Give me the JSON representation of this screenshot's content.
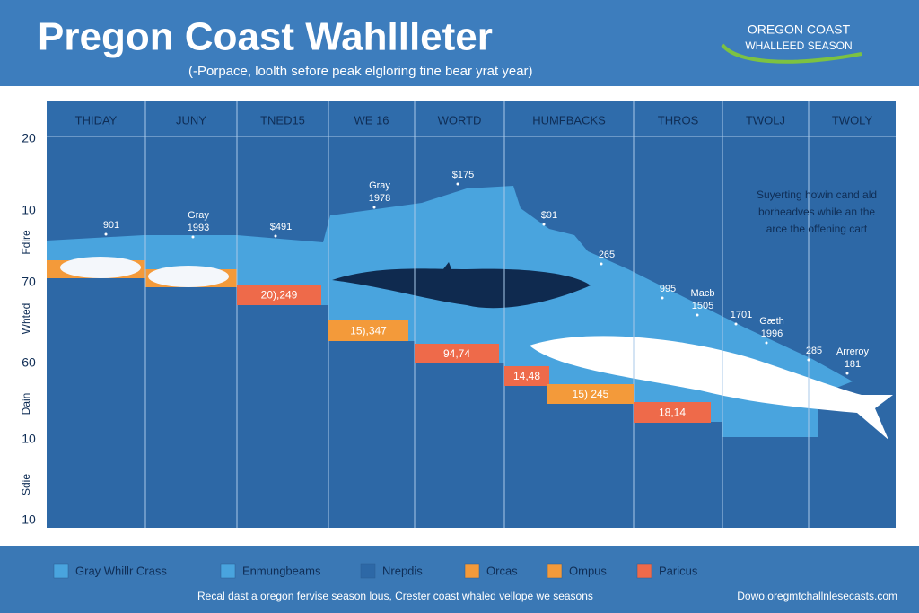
{
  "header": {
    "title": "Pregon Coast Wahllleter",
    "subtitle": "(-Porpace, loolth sefore peak elgloring tine bear yrat year)",
    "logo": [
      "OREGON COAST",
      "WHALLEED SEASON"
    ]
  },
  "columns": [
    "THIDAY",
    "JUNY",
    "TNED15",
    "WE 16",
    "WORTD",
    "HUMFBACKS",
    "THROS",
    "TWOLJ",
    "TWOLY"
  ],
  "y_labels": [
    "20",
    "10",
    "70",
    "60",
    "10",
    "10"
  ],
  "side_labels": [
    "Fdire",
    "Whted",
    "Dain",
    "Sdie"
  ],
  "point_labels": [
    [
      "901"
    ],
    [
      "Gray",
      "1993"
    ],
    [
      "$491"
    ],
    [
      "Gray",
      "1978"
    ],
    [
      "$175"
    ],
    [
      "$91"
    ],
    [
      "265"
    ],
    [
      "995"
    ],
    [
      "Macb",
      "1505"
    ],
    [
      "1701"
    ],
    [
      "Gæth",
      "1996"
    ],
    [
      "285"
    ],
    [
      "Arreroy",
      "181"
    ]
  ],
  "bars": [
    {
      "label": "20),249",
      "color": "#ee6a4a"
    },
    {
      "label": "15),347",
      "color": "#f39a3a"
    },
    {
      "label": "94,74",
      "color": "#ee6a4a"
    },
    {
      "label": "14,48",
      "color": "#ee6a4a"
    },
    {
      "label": "15) 245",
      "color": "#f39a3a"
    },
    {
      "label": "18,14",
      "color": "#ee6a4a"
    }
  ],
  "annotation": [
    "Suyerting howin cand ald",
    "borheadves while an the",
    "arce the offening cart"
  ],
  "legend": [
    {
      "name": "Gray Whillr Crass",
      "color": "#49a4de"
    },
    {
      "name": "Enmungbeams",
      "color": "#49a4de"
    },
    {
      "name": "Nrepdis",
      "color": "#2d68a6"
    },
    {
      "name": "Orcas",
      "color": "#f39a3a"
    },
    {
      "name": "Ompus",
      "color": "#f39a3a"
    },
    {
      "name": "Paricus",
      "color": "#ee6a4a"
    }
  ],
  "footer": {
    "left": "Recal dast a oregon fervise season lous, Crester coast whaled vellope we seasons",
    "right": "Dowo.oregmtchallnlesecasts.com"
  }
}
